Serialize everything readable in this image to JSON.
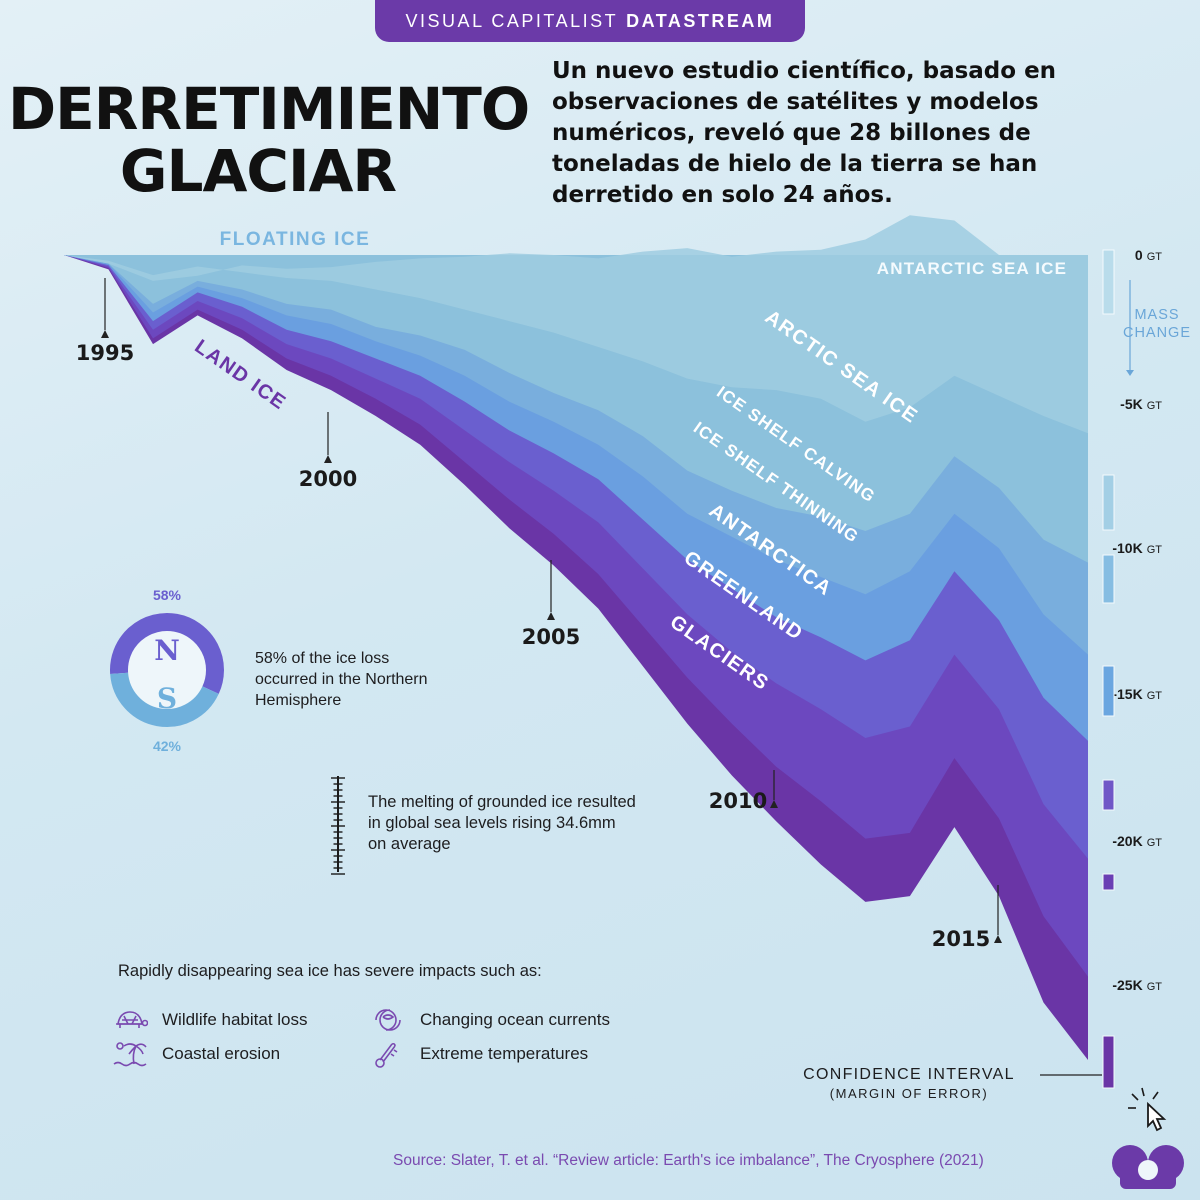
{
  "banner": {
    "prefix": "VISUAL CAPITALIST",
    "brand": "DATASTREAM"
  },
  "title_line1": "DERRETIMIENTO",
  "title_line2": "GLACIAR",
  "subtitle": "Un nuevo estudio científico, basado en observaciones de satélites y modelos numéricos, reveló que 28 billones de toneladas de hielo de la tierra se han derretido en solo 24 años.",
  "donut": {
    "north_pct": "58%",
    "south_pct": "42%",
    "north_letter": "N",
    "south_letter": "S",
    "north_value": 58,
    "caption": "58% of the ice loss occurred in the Northern Hemisphere"
  },
  "sea_level_note": "The melting of grounded ice resulted in global sea levels rising 34.6mm on average",
  "impacts": {
    "heading": "Rapidly disappearing sea ice has severe impacts such as:",
    "items": [
      "Wildlife habitat loss",
      "Changing ocean currents",
      "Coastal erosion",
      "Extreme temperatures"
    ]
  },
  "confidence": {
    "label": "CONFIDENCE INTERVAL",
    "sub": "(MARGIN OF ERROR)"
  },
  "source": "Source: Slater, T. et al. “Review article: Earth's ice imbalance”, The Cryosphere (2021)",
  "colors": {
    "antarctic_sea_ice": "#9fcde0",
    "arctic_sea_ice": "#8cc1dc",
    "ice_shelf_calving": "#79aedd",
    "ice_shelf_thinning": "#6a9fe0",
    "antarctica": "#6a5fcf",
    "greenland": "#6c48bf",
    "glaciers": "#6a35a6",
    "brand": "#6b3aa8"
  },
  "chart_data": {
    "type": "area",
    "title": "",
    "xlabel": "",
    "ylabel": "MASS CHANGE",
    "group_labels": [
      "FLOATING ICE",
      "LAND ICE"
    ],
    "x_ticks": [
      1995,
      2000,
      2005,
      2010,
      2015
    ],
    "y_ticks": [
      0,
      -5000,
      -10000,
      -15000,
      -20000,
      -25000
    ],
    "y_tick_labels": [
      "0",
      "-5K",
      "-10K",
      "-15K",
      "-20K",
      "-25K"
    ],
    "y_unit": "GT",
    "ylim": [
      -28000,
      0
    ],
    "x": [
      1994,
      1995,
      1996,
      1997,
      1998,
      1999,
      2000,
      2001,
      2002,
      2003,
      2004,
      2005,
      2006,
      2007,
      2008,
      2009,
      2010,
      2011,
      2012,
      2013,
      2014,
      2015,
      2016,
      2017
    ],
    "stack_order_note": "series listed from top layer down; each value is the cumulative mass change (GT) at the bottom edge of that layer",
    "series": [
      {
        "name": "ANTARCTIC SEA ICE",
        "group": "FLOATING ICE",
        "values": [
          0,
          -200,
          -700,
          -400,
          -600,
          -800,
          -900,
          -1200,
          -1500,
          -1900,
          -2300,
          -2700,
          -3200,
          -3700,
          -4300,
          -4600,
          -4700,
          -5000,
          -5800,
          -5300,
          -4200,
          -4900,
          -5600,
          -6200
        ]
      },
      {
        "name": "ARCTIC SEA ICE",
        "group": "FLOATING ICE",
        "values": [
          0,
          -300,
          -1700,
          -900,
          -1200,
          -1700,
          -1900,
          -2500,
          -2800,
          -3300,
          -4100,
          -4800,
          -5400,
          -6300,
          -7500,
          -8200,
          -8800,
          -9100,
          -9600,
          -9000,
          -7000,
          -8100,
          -9900,
          -10700
        ]
      },
      {
        "name": "ICE SHELF CALVING",
        "group": "FLOATING ICE",
        "values": [
          0,
          -300,
          -2000,
          -1100,
          -1500,
          -2100,
          -2400,
          -3000,
          -3500,
          -4200,
          -5100,
          -5800,
          -6600,
          -7700,
          -9000,
          -9800,
          -10600,
          -11200,
          -11800,
          -11000,
          -9000,
          -10200,
          -12500,
          -13900
        ]
      },
      {
        "name": "ICE SHELF THINNING",
        "group": "FLOATING ICE",
        "values": [
          0,
          -350,
          -2300,
          -1300,
          -1800,
          -2600,
          -3000,
          -3600,
          -4200,
          -5100,
          -6100,
          -6900,
          -7800,
          -9200,
          -10600,
          -11600,
          -12600,
          -13300,
          -14100,
          -13400,
          -11000,
          -12700,
          -15400,
          -16900
        ]
      },
      {
        "name": "ANTARCTICA",
        "group": "LAND ICE",
        "values": [
          0,
          -400,
          -2600,
          -1600,
          -2200,
          -3100,
          -3600,
          -4300,
          -5000,
          -6100,
          -7200,
          -8200,
          -9300,
          -10900,
          -12500,
          -13800,
          -14900,
          -15800,
          -16800,
          -16400,
          -13900,
          -15800,
          -19100,
          -21000
        ]
      },
      {
        "name": "GREENLAND",
        "group": "LAND ICE",
        "values": [
          0,
          -450,
          -2900,
          -1900,
          -2600,
          -3600,
          -4200,
          -5000,
          -5900,
          -7200,
          -8500,
          -9700,
          -11100,
          -12900,
          -14700,
          -16300,
          -17800,
          -19000,
          -20300,
          -20100,
          -17500,
          -19600,
          -23000,
          -25100
        ]
      },
      {
        "name": "GLACIERS",
        "group": "LAND ICE",
        "values": [
          0,
          -500,
          -3100,
          -2100,
          -2900,
          -4000,
          -4700,
          -5600,
          -6600,
          -8000,
          -9500,
          -10800,
          -12300,
          -14300,
          -16300,
          -18100,
          -19700,
          -21200,
          -22500,
          -22300,
          -19900,
          -22300,
          -26000,
          -28000
        ]
      }
    ]
  }
}
